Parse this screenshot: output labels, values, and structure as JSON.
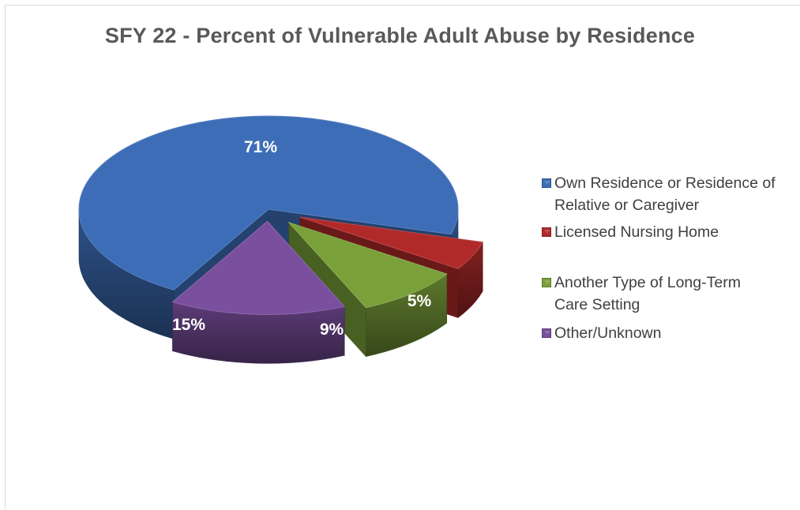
{
  "chart_data": {
    "type": "pie",
    "title": "SFY 22 - Percent of Vulnerable Adult Abuse by Residence",
    "categories": [
      "Own Residence or Residence of Relative or Caregiver",
      "Licensed Nursing Home",
      "Another Type of Long-Term Care Setting",
      "Other/Unknown"
    ],
    "values": [
      71,
      5,
      9,
      15
    ],
    "data_labels": [
      "71%",
      "5%",
      "9%",
      "15%"
    ],
    "colors": [
      "#3d6db7",
      "#b02a2a",
      "#7aa03a",
      "#7a4f9e"
    ],
    "legend_position": "right",
    "style": "3D exploded pie"
  },
  "legend": {
    "items": [
      {
        "label_line1": "Own Residence or Residence of",
        "label_line2": "Relative or Caregiver",
        "color": "#3d6db7"
      },
      {
        "label_line1": "Licensed Nursing Home",
        "label_line2": "",
        "color": "#b02a2a"
      },
      {
        "label_line1": "Another Type of Long-Term",
        "label_line2": "Care Setting",
        "color": "#7aa03a"
      },
      {
        "label_line1": "Other/Unknown",
        "label_line2": "",
        "color": "#7a4f9e"
      }
    ]
  }
}
